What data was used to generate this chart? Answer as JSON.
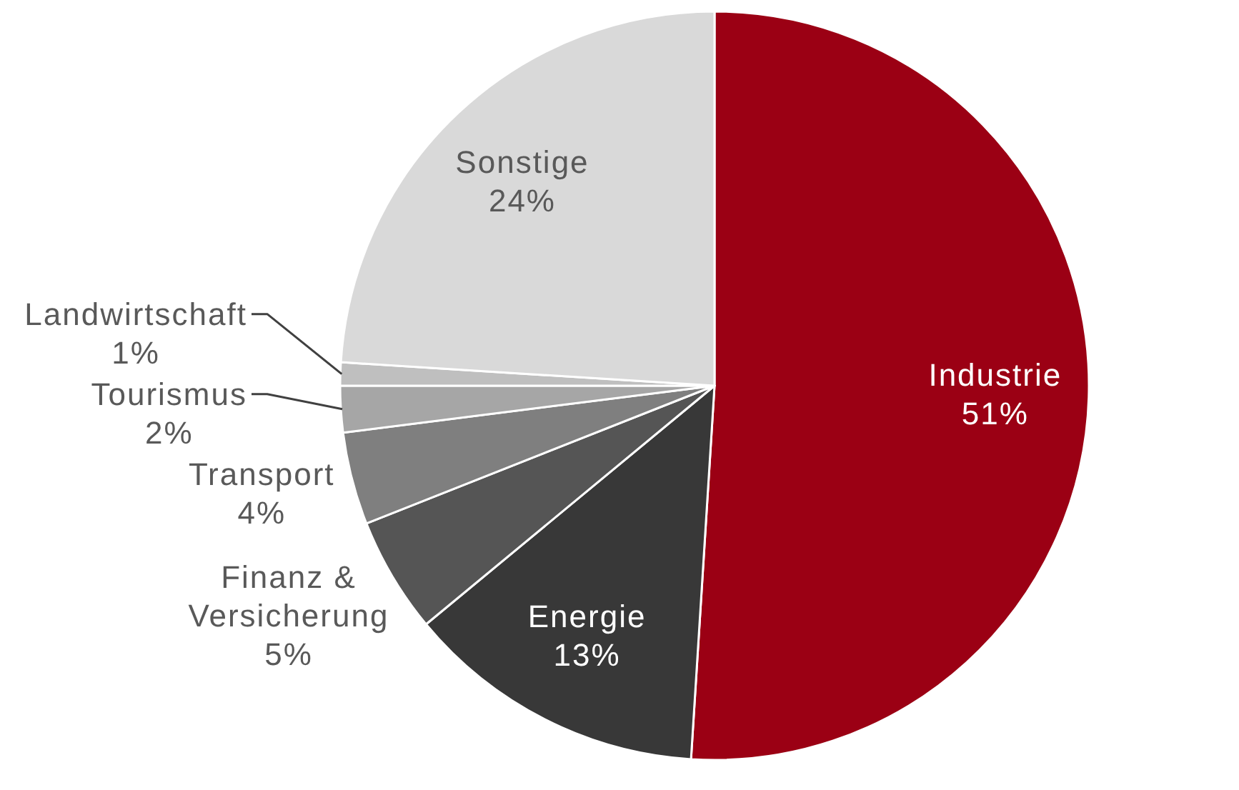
{
  "chart_data": {
    "type": "pie",
    "categories": [
      "Industrie",
      "Energie",
      "Finanz & Versicherung",
      "Transport",
      "Tourismus",
      "Landwirtschaft",
      "Sonstige"
    ],
    "values": [
      51,
      13,
      5,
      4,
      2,
      1,
      24
    ],
    "colors": [
      "#9b0014",
      "#383838",
      "#555555",
      "#7f7f7f",
      "#a6a6a6",
      "#bfbfbf",
      "#d9d9d9"
    ],
    "value_labels": [
      "51%",
      "13%",
      "5%",
      "4%",
      "2%",
      "1%",
      "24%"
    ]
  }
}
